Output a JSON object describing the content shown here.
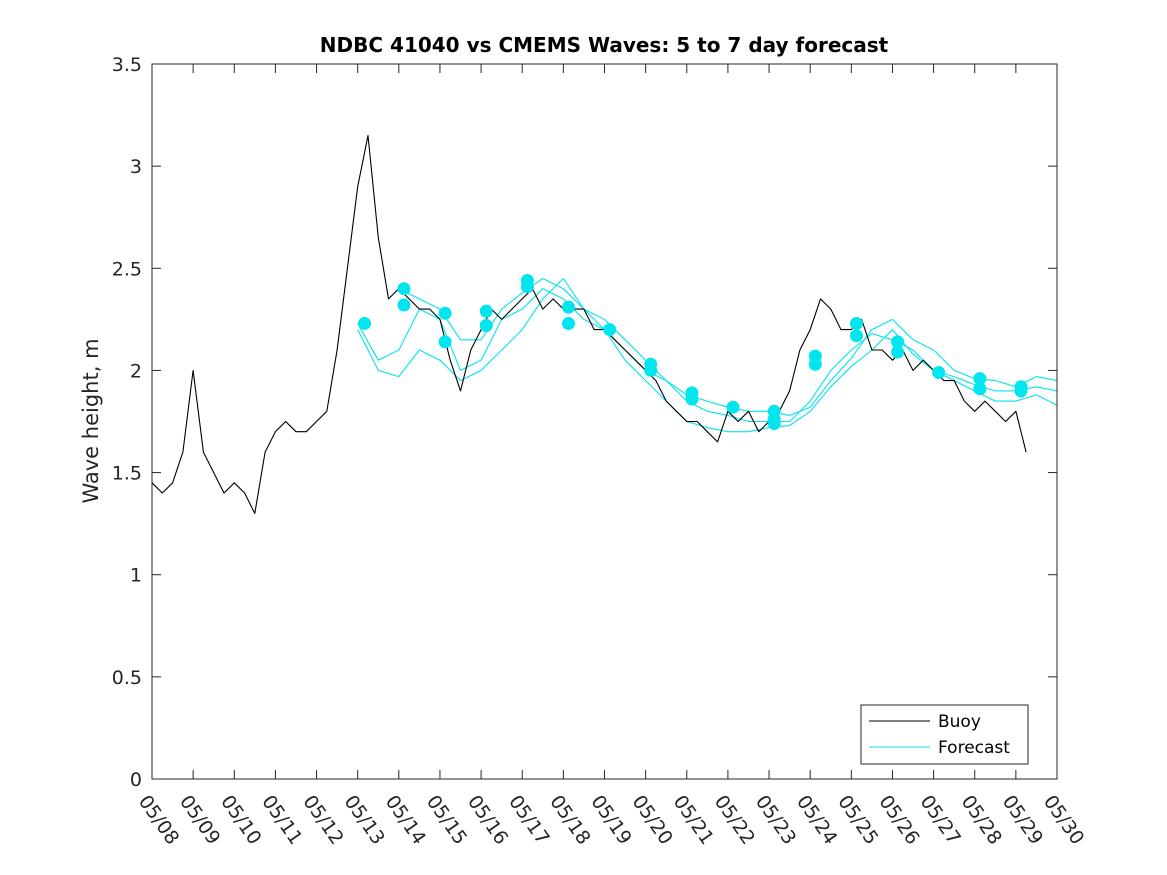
{
  "chart_data": {
    "type": "line",
    "title": "NDBC 41040 vs CMEMS Waves: 5 to 7 day forecast",
    "xlabel": "",
    "ylabel": "Wave height, m",
    "xlim": [
      "05/08",
      "05/30"
    ],
    "ylim": [
      0,
      3.5
    ],
    "x_tick_labels": [
      "05/08",
      "05/09",
      "05/10",
      "05/11",
      "05/12",
      "05/13",
      "05/14",
      "05/15",
      "05/16",
      "05/17",
      "05/18",
      "05/19",
      "05/20",
      "05/21",
      "05/22",
      "05/23",
      "05/24",
      "05/25",
      "05/26",
      "05/27",
      "05/28",
      "05/29",
      "05/30"
    ],
    "y_ticks": [
      0,
      0.5,
      1,
      1.5,
      2,
      2.5,
      3,
      3.5
    ],
    "y_tick_labels": [
      "0",
      "0.5",
      "1",
      "1.5",
      "2",
      "2.5",
      "3",
      "3.5"
    ],
    "legend": {
      "position": "bottom-right",
      "entries": [
        {
          "label": "Buoy",
          "color": "#000000"
        },
        {
          "label": "Forecast",
          "color": "#00e5ee"
        }
      ]
    },
    "grid": false,
    "series": [
      {
        "name": "Buoy",
        "color": "#000000",
        "x": [
          "05/08 00:00",
          "05/08 06:00",
          "05/08 12:00",
          "05/08 18:00",
          "05/09 00:00",
          "05/09 06:00",
          "05/09 12:00",
          "05/09 18:00",
          "05/10 00:00",
          "05/10 06:00",
          "05/10 12:00",
          "05/10 18:00",
          "05/11 00:00",
          "05/11 06:00",
          "05/11 12:00",
          "05/11 18:00",
          "05/12 00:00",
          "05/12 06:00",
          "05/12 12:00",
          "05/12 18:00",
          "05/13 00:00",
          "05/13 06:00",
          "05/13 12:00",
          "05/13 18:00",
          "05/14 00:00",
          "05/14 06:00",
          "05/14 12:00",
          "05/14 18:00",
          "05/15 00:00",
          "05/15 06:00",
          "05/15 12:00",
          "05/15 18:00",
          "05/16 00:00",
          "05/16 06:00",
          "05/16 12:00",
          "05/16 18:00",
          "05/17 00:00",
          "05/17 06:00",
          "05/17 12:00",
          "05/17 18:00",
          "05/18 00:00",
          "05/18 06:00",
          "05/18 12:00",
          "05/18 18:00",
          "05/19 00:00",
          "05/19 06:00",
          "05/19 12:00",
          "05/19 18:00",
          "05/20 00:00",
          "05/20 06:00",
          "05/20 12:00",
          "05/20 18:00",
          "05/21 00:00",
          "05/21 06:00",
          "05/21 12:00",
          "05/21 18:00",
          "05/22 00:00",
          "05/22 06:00",
          "05/22 12:00",
          "05/22 18:00",
          "05/23 00:00",
          "05/23 06:00",
          "05/23 12:00",
          "05/23 18:00",
          "05/24 00:00",
          "05/24 06:00",
          "05/24 12:00",
          "05/24 18:00",
          "05/25 00:00",
          "05/25 06:00",
          "05/25 12:00",
          "05/25 18:00",
          "05/26 00:00",
          "05/26 06:00",
          "05/26 12:00",
          "05/26 18:00",
          "05/27 00:00",
          "05/27 06:00",
          "05/27 12:00",
          "05/27 18:00",
          "05/28 00:00",
          "05/28 06:00",
          "05/28 12:00",
          "05/28 18:00",
          "05/29 00:00",
          "05/29 06:00"
        ],
        "values": [
          1.45,
          1.4,
          1.45,
          1.6,
          2.0,
          1.6,
          1.5,
          1.4,
          1.45,
          1.4,
          1.3,
          1.6,
          1.7,
          1.75,
          1.7,
          1.7,
          1.75,
          1.8,
          2.1,
          2.5,
          2.9,
          3.15,
          2.65,
          2.35,
          2.4,
          2.35,
          2.3,
          2.3,
          2.25,
          2.05,
          1.9,
          2.1,
          2.2,
          2.3,
          2.25,
          2.3,
          2.35,
          2.4,
          2.3,
          2.35,
          2.3,
          2.3,
          2.3,
          2.2,
          2.2,
          2.15,
          2.1,
          2.05,
          2.0,
          1.95,
          1.85,
          1.8,
          1.75,
          1.75,
          1.7,
          1.65,
          1.8,
          1.75,
          1.8,
          1.7,
          1.75,
          1.8,
          1.9,
          2.1,
          2.2,
          2.35,
          2.3,
          2.2,
          2.2,
          2.25,
          2.1,
          2.1,
          2.05,
          2.1,
          2.0,
          2.05,
          2.0,
          1.95,
          1.95,
          1.85,
          1.8,
          1.85,
          1.8,
          1.75,
          1.8,
          1.6
        ]
      },
      {
        "name": "Forecast",
        "color": "#00e5ee",
        "x": [
          "05/13 00:00",
          "05/13 12:00",
          "05/14 00:00",
          "05/14 12:00",
          "05/15 00:00",
          "05/15 12:00",
          "05/16 00:00",
          "05/16 12:00",
          "05/17 00:00",
          "05/17 12:00",
          "05/18 00:00",
          "05/18 12:00",
          "05/19 00:00",
          "05/19 12:00",
          "05/20 00:00",
          "05/20 12:00",
          "05/21 00:00",
          "05/21 12:00",
          "05/22 00:00",
          "05/22 12:00",
          "05/23 00:00",
          "05/23 12:00",
          "05/24 00:00",
          "05/24 12:00",
          "05/25 00:00",
          "05/25 12:00",
          "05/26 00:00",
          "05/26 12:00",
          "05/27 00:00",
          "05/27 12:00",
          "05/28 00:00",
          "05/28 12:00",
          "05/29 00:00",
          "05/29 12:00",
          "05/30 00:00"
        ],
        "values": [
          2.23,
          2.05,
          2.1,
          2.3,
          2.25,
          2.0,
          2.05,
          2.25,
          2.3,
          2.4,
          2.35,
          2.25,
          2.2,
          2.1,
          2.0,
          1.95,
          1.85,
          1.8,
          1.78,
          1.75,
          1.75,
          1.75,
          1.85,
          2.0,
          2.1,
          2.18,
          2.15,
          2.1,
          2.0,
          1.97,
          1.93,
          1.9,
          1.9,
          1.92,
          1.9
        ]
      },
      {
        "name": "Forecast",
        "color": "#00e5ee",
        "x": [
          "05/13 00:00",
          "05/13 12:00",
          "05/14 00:00",
          "05/14 12:00",
          "05/15 00:00",
          "05/15 12:00",
          "05/16 00:00",
          "05/16 12:00",
          "05/17 00:00",
          "05/17 12:00",
          "05/18 00:00",
          "05/18 12:00",
          "05/19 00:00",
          "05/19 12:00",
          "05/20 00:00",
          "05/20 12:00",
          "05/21 00:00",
          "05/21 12:00",
          "05/22 00:00",
          "05/22 12:00",
          "05/23 00:00",
          "05/23 12:00",
          "05/24 00:00",
          "05/24 12:00",
          "05/25 00:00",
          "05/25 12:00",
          "05/26 00:00",
          "05/26 12:00",
          "05/27 00:00",
          "05/27 12:00",
          "05/28 00:00",
          "05/28 12:00",
          "05/29 00:00",
          "05/29 12:00",
          "05/30 00:00"
        ],
        "values": [
          2.2,
          2.0,
          1.97,
          2.1,
          2.05,
          1.95,
          2.0,
          2.1,
          2.2,
          2.35,
          2.45,
          2.3,
          2.2,
          2.05,
          1.95,
          1.85,
          1.75,
          1.72,
          1.7,
          1.7,
          1.72,
          1.73,
          1.8,
          1.92,
          2.02,
          2.1,
          2.2,
          2.08,
          2.0,
          1.95,
          1.9,
          1.85,
          1.85,
          1.88,
          1.83
        ]
      },
      {
        "name": "Forecast",
        "color": "#00e5ee",
        "x": [
          "05/14 00:00",
          "05/14 12:00",
          "05/15 00:00",
          "05/15 12:00",
          "05/16 00:00",
          "05/16 12:00",
          "05/17 00:00",
          "05/17 12:00",
          "05/18 00:00",
          "05/18 12:00",
          "05/19 00:00",
          "05/19 12:00",
          "05/20 00:00",
          "05/20 12:00",
          "05/21 00:00",
          "05/21 12:00",
          "05/22 00:00",
          "05/22 12:00",
          "05/23 00:00",
          "05/23 12:00",
          "05/24 00:00",
          "05/24 12:00",
          "05/25 00:00",
          "05/25 12:00",
          "05/26 00:00",
          "05/26 12:00",
          "05/27 00:00",
          "05/27 12:00",
          "05/28 00:00",
          "05/28 12:00",
          "05/29 00:00",
          "05/29 12:00",
          "05/30 00:00"
        ],
        "values": [
          2.4,
          2.35,
          2.3,
          2.15,
          2.15,
          2.3,
          2.38,
          2.45,
          2.4,
          2.3,
          2.25,
          2.15,
          2.05,
          1.95,
          1.88,
          1.85,
          1.82,
          1.8,
          1.8,
          1.78,
          1.82,
          1.95,
          2.06,
          2.2,
          2.25,
          2.15,
          2.1,
          2.0,
          1.96,
          1.95,
          1.92,
          1.97,
          1.95
        ]
      }
    ],
    "markers": {
      "color": "#00e5ee",
      "x": [
        "05/13 04:00",
        "05/14 03:00",
        "05/14 03:00",
        "05/15 03:00",
        "05/15 03:00",
        "05/16 03:00",
        "05/16 03:00",
        "05/17 03:00",
        "05/17 03:00",
        "05/18 03:00",
        "05/18 03:00",
        "05/19 03:00",
        "05/20 03:00",
        "05/20 03:00",
        "05/21 03:00",
        "05/21 03:00",
        "05/22 03:00",
        "05/23 03:00",
        "05/23 03:00",
        "05/23 03:00",
        "05/24 03:00",
        "05/24 03:00",
        "05/25 03:00",
        "05/25 03:00",
        "05/26 03:00",
        "05/26 03:00",
        "05/27 03:00",
        "05/28 03:00",
        "05/28 03:00",
        "05/29 03:00",
        "05/29 03:00"
      ],
      "values": [
        2.23,
        2.4,
        2.32,
        2.28,
        2.14,
        2.29,
        2.22,
        2.44,
        2.41,
        2.31,
        2.23,
        2.2,
        2.03,
        2.0,
        1.89,
        1.86,
        1.82,
        1.8,
        1.76,
        1.74,
        2.07,
        2.03,
        2.23,
        2.17,
        2.14,
        2.09,
        1.99,
        1.96,
        1.91,
        1.92,
        1.9
      ]
    }
  }
}
